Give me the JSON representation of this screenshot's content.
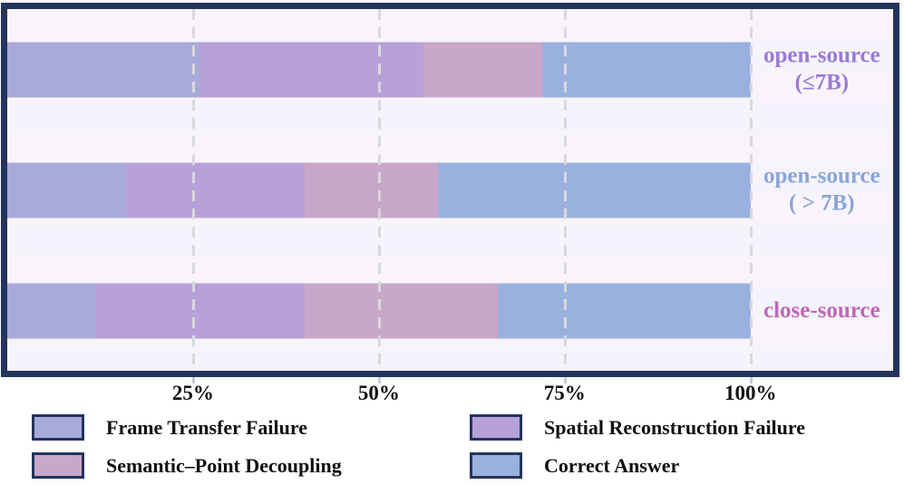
{
  "chart_data": {
    "type": "bar",
    "orientation": "horizontal",
    "stacked": true,
    "title": "",
    "xlabel": "",
    "ylabel": "",
    "xlim": [
      0,
      100
    ],
    "grid": "dashed-vertical",
    "legend_position": "bottom",
    "categories": [
      {
        "name": "open-source (≤7B)",
        "label_lines": [
          "open-source",
          "(≤7B)"
        ],
        "label_color": "#9b7ad3"
      },
      {
        "name": "open-source (>7B)",
        "label_lines": [
          "open-source",
          "( > 7B)"
        ],
        "label_color": "#8aa5d8"
      },
      {
        "name": "close-source",
        "label_lines": [
          "close-source"
        ],
        "label_color": "#bf69b3"
      }
    ],
    "series": [
      {
        "name": "Frame Transfer Failure",
        "color": "#a8aad9",
        "values": [
          26,
          16,
          12
        ]
      },
      {
        "name": "Spatial Reconstruction Failure",
        "color": "#b7a1d8",
        "values": [
          30,
          24,
          28
        ]
      },
      {
        "name": "Semantic–Point Decoupling",
        "color": "#c9a7c8",
        "values": [
          16,
          18,
          26
        ]
      },
      {
        "name": "Correct Answer",
        "color": "#9ab1e0",
        "values": [
          28,
          42,
          34
        ]
      }
    ],
    "x_ticks": [
      {
        "label": "25%",
        "value": 25
      },
      {
        "label": "50%",
        "value": 50
      },
      {
        "label": "75%",
        "value": 75
      },
      {
        "label": "100%",
        "value": 100
      }
    ]
  },
  "style": {
    "frame_color": "#24345c",
    "plot_bg": "#f8f4fa",
    "plot_bg_alt": "#f5f4fc",
    "gridline_color": "#d8d8de",
    "axis_text_color": "#111111",
    "axis_scale_end_fraction": 0.839
  }
}
